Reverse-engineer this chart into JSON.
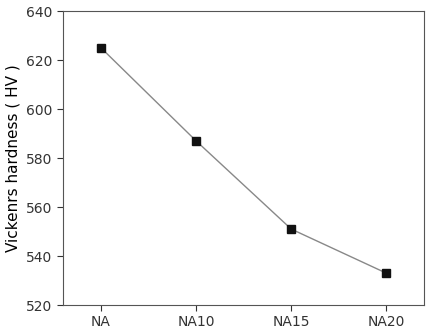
{
  "categories": [
    "NA",
    "NA10",
    "NA15",
    "NA20"
  ],
  "values": [
    625,
    587,
    551,
    533
  ],
  "ylabel": "Vickenrs hardness ( HV )",
  "ylim": [
    520,
    640
  ],
  "yticks": [
    520,
    540,
    560,
    580,
    600,
    620,
    640
  ],
  "line_color": "#888888",
  "marker_color": "#111111",
  "marker": "s",
  "marker_size": 6,
  "linewidth": 1.0,
  "background_color": "#ffffff",
  "spine_color": "#555555",
  "tick_fontsize": 10,
  "label_fontsize": 11
}
